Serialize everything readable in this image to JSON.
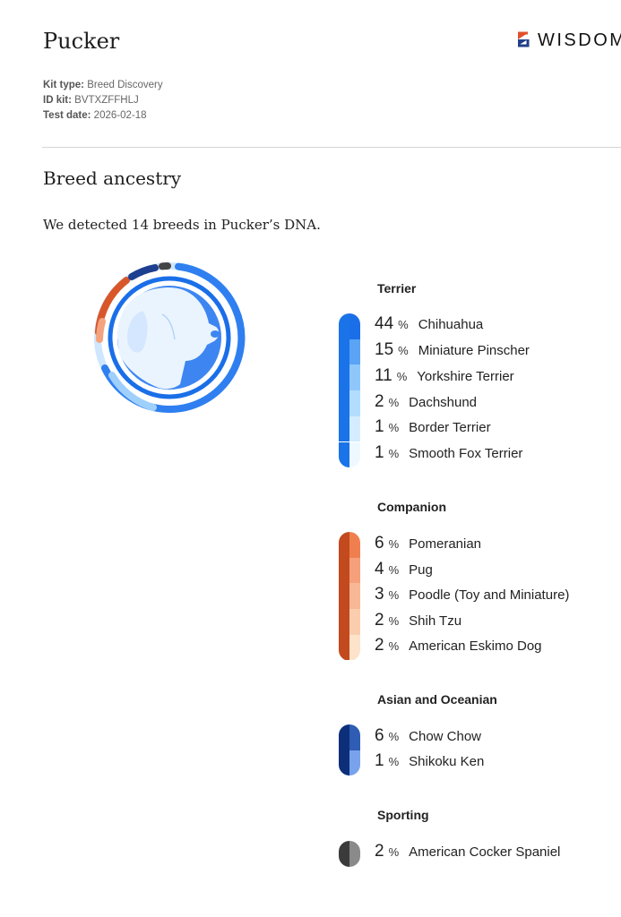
{
  "header": {
    "dog_name": "Pucker",
    "brand_text": "WISDOM",
    "brand_icon": "wisdom-logo-icon"
  },
  "meta": {
    "kit_type_label": "Kit type:",
    "kit_type_value": "Breed Discovery",
    "id_label": "ID kit:",
    "id_value": "BVTXZFFHLJ",
    "date_label": "Test date:",
    "date_value": "2026-02-18"
  },
  "section": {
    "title": "Breed ancestry",
    "intro": "We detected 14 breeds in Pucker’s DNA."
  },
  "percent_sign": "%",
  "groups": [
    {
      "name": "Terrier",
      "accent": "#1a73e8",
      "breeds": [
        {
          "pct": "44",
          "name": "Chihuahua",
          "color": "#1a6fe8"
        },
        {
          "pct": "15",
          "name": "Miniature Pinscher",
          "color": "#5aa3f5"
        },
        {
          "pct": "11",
          "name": "Yorkshire Terrier",
          "color": "#8fc7fb"
        },
        {
          "pct": "2",
          "name": "Dachshund",
          "color": "#b3ddfd"
        },
        {
          "pct": "1",
          "name": "Border Terrier",
          "color": "#d4ecfe"
        },
        {
          "pct": "1",
          "name": "Smooth Fox Terrier",
          "color": "#eef8ff"
        }
      ]
    },
    {
      "name": "Companion",
      "accent": "#c24a1e",
      "breeds": [
        {
          "pct": "6",
          "name": "Pomeranian",
          "color": "#f07f50"
        },
        {
          "pct": "4",
          "name": "Pug",
          "color": "#f5a07a"
        },
        {
          "pct": "3",
          "name": "Poodle (Toy and Miniature)",
          "color": "#f8b795"
        },
        {
          "pct": "2",
          "name": "Shih Tzu",
          "color": "#fbcdaf"
        },
        {
          "pct": "2",
          "name": "American Eskimo Dog",
          "color": "#fde3c9"
        }
      ]
    },
    {
      "name": "Asian and Oceanian",
      "accent": "#0d2f7a",
      "breeds": [
        {
          "pct": "6",
          "name": "Chow Chow",
          "color": "#2e5db3"
        },
        {
          "pct": "1",
          "name": "Shikoku Ken",
          "color": "#79a2ec"
        }
      ]
    },
    {
      "name": "Sporting",
      "accent": "#3b3b3b",
      "breeds": [
        {
          "pct": "2",
          "name": "American Cocker Spaniel",
          "color": "#8a8a8a"
        }
      ]
    }
  ],
  "donut": {
    "icon": "dog-head-icon",
    "center_color": "#2f7ff0",
    "ring_terrier_color": "#2f7ff0",
    "ring_companion_color": "#d8572a",
    "ring_asian_color": "#1d3f8f",
    "ring_sporting_color": "#444444"
  }
}
